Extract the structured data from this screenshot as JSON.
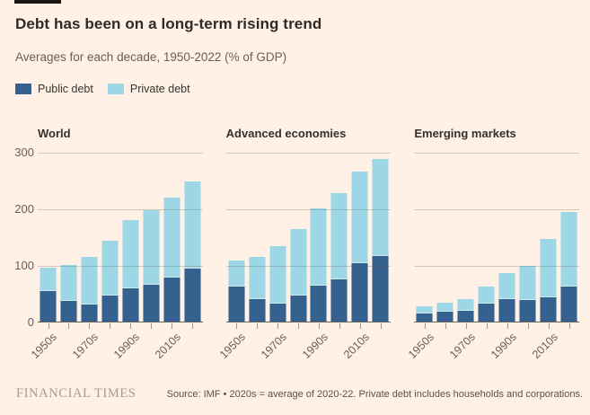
{
  "header": {
    "title": "Debt has been on a long-term rising trend",
    "subtitle": "Averages for each decade, 1950-2022 (% of GDP)"
  },
  "legend": {
    "items": [
      {
        "label": "Public debt",
        "color": "#35618E"
      },
      {
        "label": "Private debt",
        "color": "#9DD7E5"
      }
    ]
  },
  "colors": {
    "public": "#35618E",
    "private": "#9DD7E5",
    "background": "#FFF1E5",
    "accent_bar": "#1A1817",
    "gridline": "rgba(96,88,82,0.28)",
    "baseline": "#696359",
    "text_dark": "#33302E",
    "text_muted": "#66605C"
  },
  "chart_data": [
    {
      "type": "bar",
      "stacked": true,
      "title": "World",
      "categories": [
        "1950s",
        "1960s",
        "1970s",
        "1980s",
        "1990s",
        "2000s",
        "2010s",
        "2020s"
      ],
      "series": [
        {
          "name": "Public debt",
          "values": [
            55,
            38,
            32,
            47,
            61,
            66,
            80,
            95
          ]
        },
        {
          "name": "Private debt",
          "values": [
            42,
            63,
            84,
            98,
            120,
            132,
            141,
            154
          ]
        }
      ],
      "totals": [
        97,
        101,
        116,
        145,
        181,
        198,
        221,
        249
      ],
      "ylim": [
        0,
        300
      ],
      "yticks": [
        0,
        100,
        200,
        300
      ],
      "xticklabels_shown": [
        "1950s",
        "1970s",
        "1990s",
        "2010s"
      ],
      "unit": "% of GDP",
      "grid": true,
      "legend_position": "top-left"
    },
    {
      "type": "bar",
      "stacked": true,
      "title": "Advanced economies",
      "categories": [
        "1950s",
        "1960s",
        "1970s",
        "1980s",
        "1990s",
        "2000s",
        "2010s",
        "2020s"
      ],
      "series": [
        {
          "name": "Public debt",
          "values": [
            63,
            42,
            33,
            48,
            65,
            76,
            104,
            118
          ]
        },
        {
          "name": "Private debt",
          "values": [
            47,
            74,
            102,
            117,
            137,
            153,
            163,
            171
          ]
        }
      ],
      "totals": [
        110,
        116,
        135,
        165,
        202,
        229,
        267,
        289
      ],
      "ylim": [
        0,
        300
      ],
      "yticks": [
        0,
        100,
        200,
        300
      ],
      "xticklabels_shown": [
        "1950s",
        "1970s",
        "1990s",
        "2010s"
      ],
      "unit": "% of GDP",
      "grid": true
    },
    {
      "type": "bar",
      "stacked": true,
      "title": "Emerging markets",
      "categories": [
        "1950s",
        "1960s",
        "1970s",
        "1980s",
        "1990s",
        "2000s",
        "2010s",
        "2020s"
      ],
      "series": [
        {
          "name": "Public debt",
          "values": [
            16,
            19,
            21,
            34,
            41,
            40,
            45,
            64
          ]
        },
        {
          "name": "Private debt",
          "values": [
            13,
            16,
            20,
            30,
            47,
            60,
            103,
            131
          ]
        }
      ],
      "totals": [
        29,
        35,
        41,
        64,
        88,
        100,
        148,
        195
      ],
      "ylim": [
        0,
        300
      ],
      "yticks": [
        0,
        100,
        200,
        300
      ],
      "xticklabels_shown": [
        "1950s",
        "1970s",
        "1990s",
        "2010s"
      ],
      "unit": "% of GDP",
      "grid": true
    }
  ],
  "footer": {
    "brand": "FINANCIAL TIMES",
    "source": "Source: IMF • 2020s = average of 2020-22. Private debt includes households and corporations."
  }
}
